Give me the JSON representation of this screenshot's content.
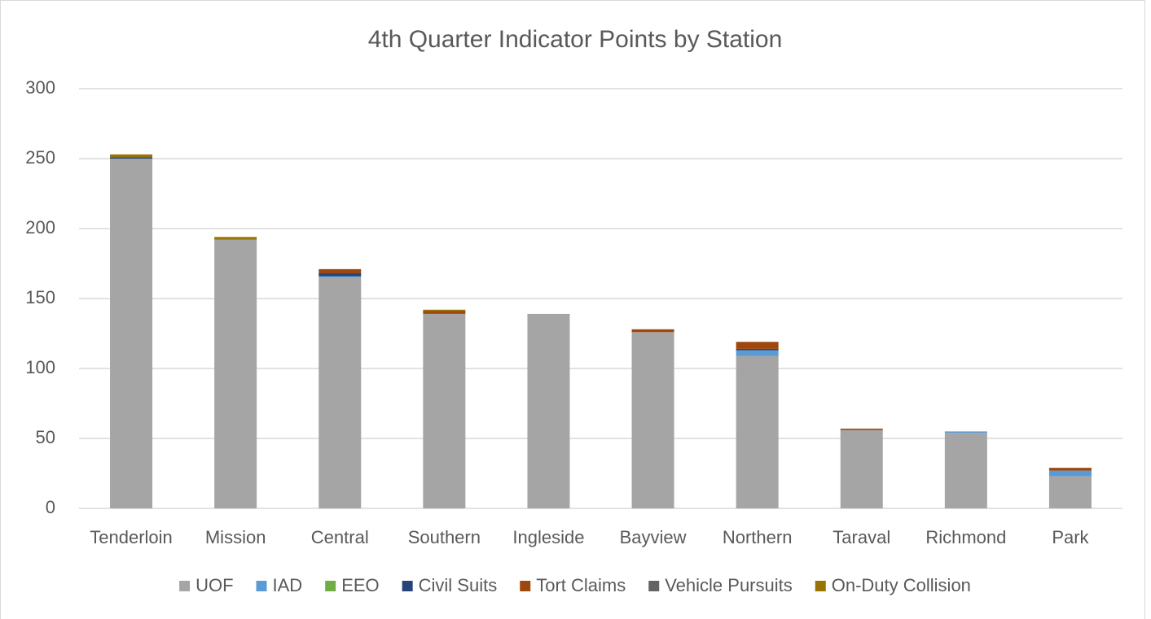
{
  "chart_data": {
    "type": "stacked_bar",
    "title": "4th Quarter Indicator Points by Station",
    "categories": [
      "Tenderloin",
      "Mission",
      "Central",
      "Southern",
      "Ingleside",
      "Bayview",
      "Northern",
      "Taraval",
      "Richmond",
      "Park"
    ],
    "series": [
      {
        "name": "UOF",
        "color": "#a5a5a5",
        "values": [
          250,
          192,
          165,
          139,
          139,
          126,
          109,
          56,
          54,
          23
        ]
      },
      {
        "name": "IAD",
        "color": "#5b9bd5",
        "values": [
          0,
          0,
          1,
          0,
          0,
          0,
          4,
          0,
          1,
          4
        ]
      },
      {
        "name": "EEO",
        "color": "#70ad47",
        "values": [
          0,
          0,
          0,
          0,
          0,
          0,
          0,
          0,
          0,
          0
        ]
      },
      {
        "name": "Civil Suits",
        "color": "#264478",
        "values": [
          1,
          0,
          2,
          0,
          0,
          0,
          1,
          0,
          0,
          0
        ]
      },
      {
        "name": "Tort Claims",
        "color": "#9e480e",
        "values": [
          0,
          0,
          3,
          2,
          0,
          2,
          5,
          1,
          0,
          2
        ]
      },
      {
        "name": "Vehicle Pursuits",
        "color": "#636363",
        "values": [
          0,
          0,
          0,
          0,
          0,
          0,
          0,
          0,
          0,
          0
        ]
      },
      {
        "name": "On-Duty Collision",
        "color": "#997300",
        "values": [
          2,
          2,
          0,
          1,
          0,
          0,
          0,
          0,
          0,
          0
        ]
      }
    ],
    "ylim": [
      0,
      300
    ],
    "yticks": [
      0,
      50,
      100,
      150,
      200,
      250,
      300
    ],
    "grid": true,
    "legend": "bottom"
  }
}
